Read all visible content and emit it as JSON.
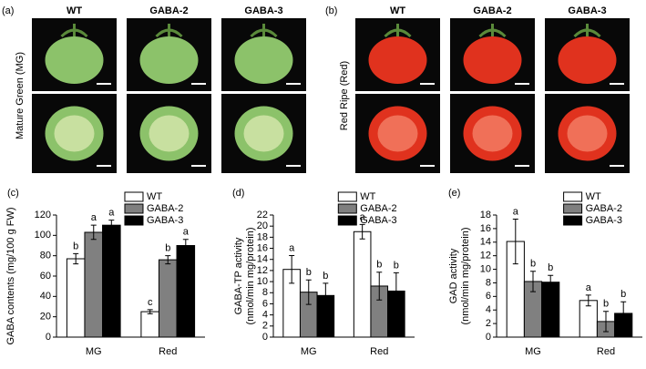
{
  "panels": [
    {
      "label": "(a)",
      "row_label": "Mature Green (MG)",
      "columns": [
        "WT",
        "GABA-2",
        "GABA-3"
      ]
    },
    {
      "label": "(b)",
      "row_label": "Red Ripe (Red)",
      "columns": [
        "WT",
        "GABA-2",
        "GABA-3"
      ]
    }
  ],
  "chart_data": [
    {
      "type": "bar",
      "panel_label": "(c)",
      "y_label": [
        "GABA contents (mg/100 g FW)"
      ],
      "categories": [
        "MG",
        "Red"
      ],
      "series": [
        {
          "name": "WT",
          "color": "#ffffff",
          "values": [
            77,
            25
          ],
          "errors": [
            5,
            2
          ],
          "letters": [
            "b",
            "c"
          ]
        },
        {
          "name": "GABA-2",
          "color": "#808080",
          "values": [
            103,
            76
          ],
          "errors": [
            7,
            4
          ],
          "letters": [
            "a",
            "b"
          ]
        },
        {
          "name": "GABA-3",
          "color": "#000000",
          "values": [
            110,
            90
          ],
          "errors": [
            5,
            6
          ],
          "letters": [
            "a",
            "a"
          ]
        }
      ],
      "ylim": [
        0,
        120
      ],
      "yticks": [
        0,
        20,
        40,
        60,
        80,
        100,
        120
      ]
    },
    {
      "type": "bar",
      "panel_label": "(d)",
      "y_label": [
        "GABA-TP activity",
        "(nmol/min mg/protein)"
      ],
      "categories": [
        "MG",
        "Red"
      ],
      "series": [
        {
          "name": "WT",
          "color": "#ffffff",
          "values": [
            12.2,
            19.0
          ],
          "errors": [
            2.5,
            1.3
          ],
          "letters": [
            "a",
            "a"
          ]
        },
        {
          "name": "GABA-2",
          "color": "#808080",
          "values": [
            8.1,
            9.2
          ],
          "errors": [
            2.2,
            2.5
          ],
          "letters": [
            "b",
            "b"
          ]
        },
        {
          "name": "GABA-3",
          "color": "#000000",
          "values": [
            7.5,
            8.3
          ],
          "errors": [
            2.2,
            3.3
          ],
          "letters": [
            "b",
            "b"
          ]
        }
      ],
      "ylim": [
        0,
        22
      ],
      "yticks": [
        0,
        2,
        4,
        6,
        8,
        10,
        12,
        14,
        16,
        18,
        20,
        22
      ]
    },
    {
      "type": "bar",
      "panel_label": "(e)",
      "y_label": [
        "GAD activity",
        "(nmol/min mg/protein)"
      ],
      "categories": [
        "MG",
        "Red"
      ],
      "series": [
        {
          "name": "WT",
          "color": "#ffffff",
          "values": [
            14.1,
            5.4
          ],
          "errors": [
            3.3,
            0.8
          ],
          "letters": [
            "a",
            "a"
          ]
        },
        {
          "name": "GABA-2",
          "color": "#808080",
          "values": [
            8.2,
            2.3
          ],
          "errors": [
            1.5,
            1.5
          ],
          "letters": [
            "b",
            "b"
          ]
        },
        {
          "name": "GABA-3",
          "color": "#000000",
          "values": [
            8.1,
            3.5
          ],
          "errors": [
            1.0,
            1.7
          ],
          "letters": [
            "b",
            "b"
          ]
        }
      ],
      "ylim": [
        0,
        18
      ],
      "yticks": [
        0,
        2,
        4,
        6,
        8,
        10,
        12,
        14,
        16,
        18
      ]
    }
  ]
}
